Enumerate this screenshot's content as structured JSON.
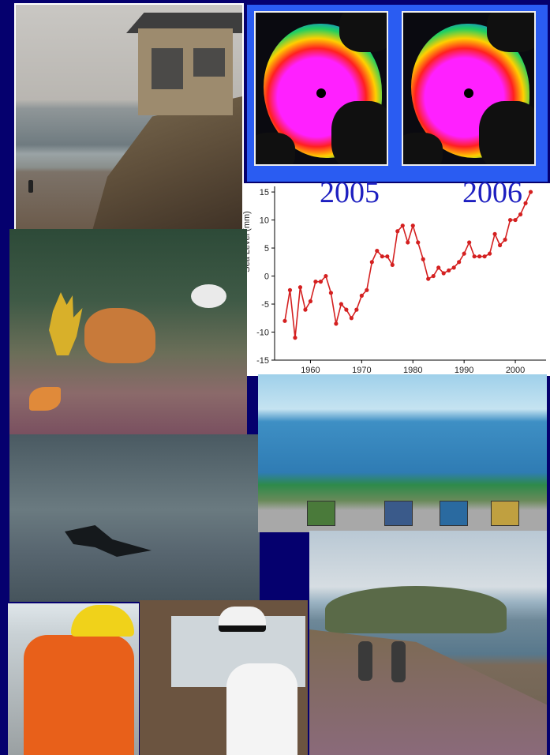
{
  "maps": {
    "left_year": "2005",
    "right_year": "2006"
  },
  "chart_data": {
    "type": "line",
    "title": "",
    "xlabel": "",
    "ylabel": "Sea Level (mm)",
    "xlim": [
      1953,
      2006
    ],
    "ylim": [
      -15,
      16
    ],
    "x_ticks": [
      "1960",
      "1970",
      "1980",
      "1990",
      "2000"
    ],
    "y_ticks": [
      "-15",
      "-10",
      "-5",
      "0",
      "5",
      "10",
      "15"
    ],
    "series": [
      {
        "color": "#d42020",
        "x": [
          1955,
          1956,
          1957,
          1958,
          1959,
          1960,
          1961,
          1962,
          1963,
          1964,
          1965,
          1966,
          1967,
          1968,
          1969,
          1970,
          1971,
          1972,
          1973,
          1974,
          1975,
          1976,
          1977,
          1978,
          1979,
          1980,
          1981,
          1982,
          1983,
          1984,
          1985,
          1986,
          1987,
          1988,
          1989,
          1990,
          1991,
          1992,
          1993,
          1994,
          1995,
          1996,
          1997,
          1998,
          1999,
          2000,
          2001,
          2002,
          2003
        ],
        "y": [
          -8,
          -2.5,
          -11,
          -2,
          -6,
          -4.5,
          -1,
          -1,
          0,
          -3,
          -8.5,
          -5,
          -6,
          -7.5,
          -6,
          -3.5,
          -2.5,
          2.5,
          4.5,
          3.5,
          3.5,
          2,
          8,
          9,
          6,
          9,
          6,
          3,
          -0.5,
          0,
          1.5,
          0.5,
          1,
          1.5,
          2.5,
          4,
          6,
          3.5,
          3.5,
          3.5,
          4,
          7.5,
          5.5,
          6.5,
          10,
          10,
          11,
          13,
          15
        ]
      }
    ]
  }
}
